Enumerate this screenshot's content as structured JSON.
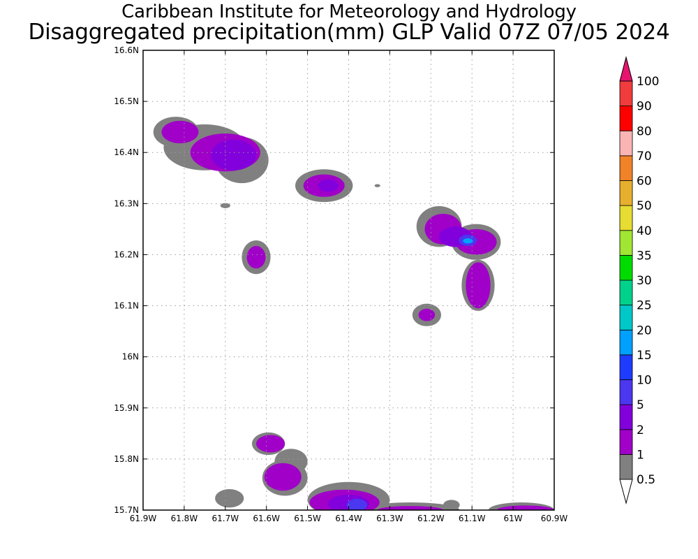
{
  "header": {
    "title_line1": "Caribbean Institute for Meteorology and Hydrology",
    "title_line2": "Disaggregated precipitation(mm) GLP Valid 07Z 07/05 2024"
  },
  "map": {
    "lon_range": [
      -61.9,
      -60.9
    ],
    "lat_range": [
      15.7,
      16.6
    ],
    "lon_ticks": [
      {
        "value": -61.9,
        "label": "61.9W"
      },
      {
        "value": -61.8,
        "label": "61.8W"
      },
      {
        "value": -61.7,
        "label": "61.7W"
      },
      {
        "value": -61.6,
        "label": "61.6W"
      },
      {
        "value": -61.5,
        "label": "61.5W"
      },
      {
        "value": -61.4,
        "label": "61.4W"
      },
      {
        "value": -61.3,
        "label": "61.3W"
      },
      {
        "value": -61.2,
        "label": "61.2W"
      },
      {
        "value": -61.1,
        "label": "61.1W"
      },
      {
        "value": -61.0,
        "label": "61W"
      },
      {
        "value": -60.9,
        "label": "60.9W"
      }
    ],
    "lat_ticks": [
      {
        "value": 16.6,
        "label": "16.6N"
      },
      {
        "value": 16.5,
        "label": "16.5N"
      },
      {
        "value": 16.4,
        "label": "16.4N"
      },
      {
        "value": 16.3,
        "label": "16.3N"
      },
      {
        "value": 16.2,
        "label": "16.2N"
      },
      {
        "value": 16.1,
        "label": "16.1N"
      },
      {
        "value": 16.0,
        "label": "16N"
      },
      {
        "value": 15.9,
        "label": "15.9N"
      },
      {
        "value": 15.8,
        "label": "15.8N"
      },
      {
        "value": 15.7,
        "label": "15.7N"
      }
    ],
    "grid": true
  },
  "colorbar": {
    "levels": [
      {
        "label": "0.5",
        "color": "#ffffff"
      },
      {
        "label": "1",
        "color": "#808080"
      },
      {
        "label": "2",
        "color": "#a000c8"
      },
      {
        "label": "5",
        "color": "#8200dc"
      },
      {
        "label": "10",
        "color": "#4b37f0"
      },
      {
        "label": "15",
        "color": "#1e3cff"
      },
      {
        "label": "20",
        "color": "#00a0ff"
      },
      {
        "label": "25",
        "color": "#00c8c8"
      },
      {
        "label": "30",
        "color": "#00d28c"
      },
      {
        "label": "35",
        "color": "#00dc00"
      },
      {
        "label": "40",
        "color": "#a0e632"
      },
      {
        "label": "50",
        "color": "#e6dc32"
      },
      {
        "label": "60",
        "color": "#e6af2d"
      },
      {
        "label": "70",
        "color": "#f08228"
      },
      {
        "label": "80",
        "color": "#fab4b4"
      },
      {
        "label": "90",
        "color": "#ff0000"
      },
      {
        "label": "100",
        "color": "#f03c3c"
      }
    ],
    "top_color": "#e6146e"
  },
  "chart_data": {
    "type": "heatmap",
    "units": "mm",
    "cells": [
      {
        "lon": -61.75,
        "lat": 16.41,
        "rx": 0.1,
        "ry": 0.045,
        "level": "1"
      },
      {
        "lon": -61.82,
        "lat": 16.44,
        "rx": 0.055,
        "ry": 0.03,
        "level": "1"
      },
      {
        "lon": -61.66,
        "lat": 16.385,
        "rx": 0.065,
        "ry": 0.045,
        "level": "1"
      },
      {
        "lon": -61.81,
        "lat": 16.44,
        "rx": 0.045,
        "ry": 0.022,
        "level": "2"
      },
      {
        "lon": -61.7,
        "lat": 16.4,
        "rx": 0.085,
        "ry": 0.037,
        "level": "2"
      },
      {
        "lon": -61.68,
        "lat": 16.395,
        "rx": 0.055,
        "ry": 0.03,
        "level": "5"
      },
      {
        "lon": -61.46,
        "lat": 16.335,
        "rx": 0.07,
        "ry": 0.032,
        "level": "1"
      },
      {
        "lon": -61.46,
        "lat": 16.335,
        "rx": 0.05,
        "ry": 0.022,
        "level": "2"
      },
      {
        "lon": -61.45,
        "lat": 16.335,
        "rx": 0.025,
        "ry": 0.012,
        "level": "5"
      },
      {
        "lon": -61.33,
        "lat": 16.335,
        "rx": 0.007,
        "ry": 0.003,
        "level": "1"
      },
      {
        "lon": -61.7,
        "lat": 16.296,
        "rx": 0.012,
        "ry": 0.005,
        "level": "1"
      },
      {
        "lon": -61.625,
        "lat": 16.195,
        "rx": 0.035,
        "ry": 0.033,
        "level": "1"
      },
      {
        "lon": -61.625,
        "lat": 16.195,
        "rx": 0.023,
        "ry": 0.022,
        "level": "2"
      },
      {
        "lon": -61.18,
        "lat": 16.255,
        "rx": 0.055,
        "ry": 0.04,
        "level": "1"
      },
      {
        "lon": -61.09,
        "lat": 16.225,
        "rx": 0.06,
        "ry": 0.035,
        "level": "1"
      },
      {
        "lon": -61.085,
        "lat": 16.14,
        "rx": 0.04,
        "ry": 0.05,
        "level": "1"
      },
      {
        "lon": -61.17,
        "lat": 16.25,
        "rx": 0.045,
        "ry": 0.03,
        "level": "2"
      },
      {
        "lon": -61.09,
        "lat": 16.225,
        "rx": 0.05,
        "ry": 0.025,
        "level": "2"
      },
      {
        "lon": -61.085,
        "lat": 16.14,
        "rx": 0.03,
        "ry": 0.045,
        "level": "2"
      },
      {
        "lon": -61.14,
        "lat": 16.235,
        "rx": 0.04,
        "ry": 0.02,
        "level": "5"
      },
      {
        "lon": -61.11,
        "lat": 16.228,
        "rx": 0.022,
        "ry": 0.011,
        "level": "10"
      },
      {
        "lon": -61.11,
        "lat": 16.227,
        "rx": 0.012,
        "ry": 0.005,
        "level": "20"
      },
      {
        "lon": -61.21,
        "lat": 16.082,
        "rx": 0.035,
        "ry": 0.022,
        "level": "1"
      },
      {
        "lon": -61.21,
        "lat": 16.082,
        "rx": 0.02,
        "ry": 0.012,
        "level": "2"
      },
      {
        "lon": -61.595,
        "lat": 15.83,
        "rx": 0.04,
        "ry": 0.022,
        "level": "1"
      },
      {
        "lon": -61.54,
        "lat": 15.795,
        "rx": 0.04,
        "ry": 0.025,
        "level": "1"
      },
      {
        "lon": -61.555,
        "lat": 15.763,
        "rx": 0.055,
        "ry": 0.035,
        "level": "1"
      },
      {
        "lon": -61.59,
        "lat": 15.83,
        "rx": 0.035,
        "ry": 0.017,
        "level": "2"
      },
      {
        "lon": -61.56,
        "lat": 15.765,
        "rx": 0.045,
        "ry": 0.027,
        "level": "2"
      },
      {
        "lon": -61.69,
        "lat": 15.723,
        "rx": 0.035,
        "ry": 0.018,
        "level": "1"
      },
      {
        "lon": -61.4,
        "lat": 15.72,
        "rx": 0.1,
        "ry": 0.035,
        "level": "1"
      },
      {
        "lon": -61.25,
        "lat": 15.7,
        "rx": 0.12,
        "ry": 0.015,
        "level": "1"
      },
      {
        "lon": -61.15,
        "lat": 15.71,
        "rx": 0.02,
        "ry": 0.01,
        "level": "1"
      },
      {
        "lon": -61.41,
        "lat": 15.715,
        "rx": 0.085,
        "ry": 0.025,
        "level": "2"
      },
      {
        "lon": -61.25,
        "lat": 15.7,
        "rx": 0.08,
        "ry": 0.008,
        "level": "2"
      },
      {
        "lon": -61.4,
        "lat": 15.712,
        "rx": 0.05,
        "ry": 0.018,
        "level": "5"
      },
      {
        "lon": -61.38,
        "lat": 15.71,
        "rx": 0.025,
        "ry": 0.012,
        "level": "10"
      },
      {
        "lon": -60.98,
        "lat": 15.7,
        "rx": 0.08,
        "ry": 0.015,
        "level": "1"
      },
      {
        "lon": -60.97,
        "lat": 15.7,
        "rx": 0.07,
        "ry": 0.009,
        "level": "2"
      }
    ]
  }
}
